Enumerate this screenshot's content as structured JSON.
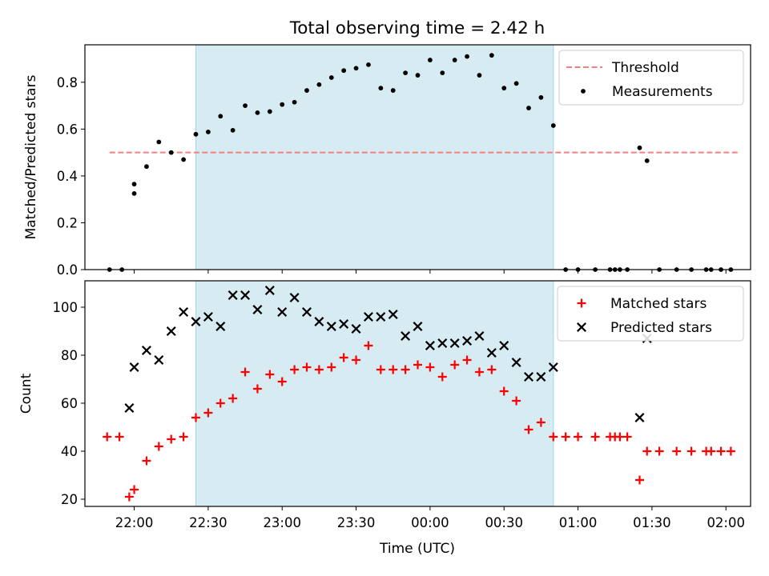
{
  "figure_title": "Total observing time = 2.42 h",
  "xlabel": "Time (UTC)",
  "x_ticks": [
    "22:00",
    "22:30",
    "23:00",
    "23:30",
    "00:00",
    "00:30",
    "01:00",
    "01:30",
    "02:00"
  ],
  "chart_data": [
    {
      "type": "scatter",
      "panel": "top",
      "ylabel": "Matched/Predicted stars",
      "ylim": [
        0,
        0.96
      ],
      "yticks": [
        0.0,
        0.2,
        0.4,
        0.6,
        0.8
      ],
      "ytick_labels": [
        "0.0",
        "0.2",
        "0.4",
        "0.6",
        "0.8"
      ],
      "x_range": [
        "21:40",
        "02:10"
      ],
      "shaded_interval": [
        "22:25",
        "00:50"
      ],
      "legend": [
        "Threshold",
        "Measurements"
      ],
      "legend_position": "top-right",
      "threshold": {
        "name": "Threshold",
        "value": 0.5,
        "x": [
          "21:50",
          "02:05"
        ],
        "color": "#f08080",
        "style": "dashed"
      },
      "series": [
        {
          "name": "Measurements",
          "color": "#000000",
          "marker": "dot",
          "x": [
            "21:50",
            "21:55",
            "22:00",
            "22:00",
            "22:05",
            "22:10",
            "22:15",
            "22:20",
            "22:25",
            "22:30",
            "22:35",
            "22:40",
            "22:45",
            "22:50",
            "22:55",
            "23:00",
            "23:05",
            "23:10",
            "23:15",
            "23:20",
            "23:25",
            "23:30",
            "23:35",
            "23:40",
            "23:45",
            "23:50",
            "23:55",
            "00:00",
            "00:05",
            "00:10",
            "00:15",
            "00:20",
            "00:25",
            "00:30",
            "00:35",
            "00:40",
            "00:45",
            "00:50",
            "00:55",
            "01:00",
            "01:07",
            "01:13",
            "01:15",
            "01:17",
            "01:20",
            "01:25",
            "01:28",
            "01:33",
            "01:40",
            "01:46",
            "01:52",
            "01:54",
            "01:58",
            "02:02"
          ],
          "y": [
            0.0,
            0.0,
            0.365,
            0.325,
            0.44,
            0.545,
            0.5,
            0.47,
            0.578,
            0.588,
            0.655,
            0.595,
            0.7,
            0.67,
            0.675,
            0.705,
            0.715,
            0.765,
            0.79,
            0.82,
            0.85,
            0.86,
            0.875,
            0.775,
            0.765,
            0.84,
            0.83,
            0.895,
            0.84,
            0.895,
            0.91,
            0.83,
            0.915,
            0.775,
            0.795,
            0.69,
            0.735,
            0.615,
            0.0,
            0.0,
            0.0,
            0.0,
            0.0,
            0.0,
            0.0,
            0.52,
            0.465,
            0.0,
            0.0,
            0.0,
            0.0,
            0.0,
            0.0,
            0.0
          ]
        }
      ]
    },
    {
      "type": "scatter",
      "panel": "bottom",
      "ylabel": "Count",
      "ylim": [
        17,
        111
      ],
      "yticks": [
        20,
        40,
        60,
        80,
        100
      ],
      "ytick_labels": [
        "20",
        "40",
        "60",
        "80",
        "100"
      ],
      "x_range": [
        "21:40",
        "02:10"
      ],
      "shaded_interval": [
        "22:25",
        "00:50"
      ],
      "legend": [
        "Matched stars",
        "Predicted stars"
      ],
      "legend_position": "top-right",
      "series": [
        {
          "name": "Matched stars",
          "color": "#ff0000",
          "marker": "plus",
          "x": [
            "21:49",
            "21:54",
            "21:58",
            "22:00",
            "22:05",
            "22:10",
            "22:15",
            "22:20",
            "22:25",
            "22:30",
            "22:35",
            "22:40",
            "22:45",
            "22:50",
            "22:55",
            "23:00",
            "23:05",
            "23:10",
            "23:15",
            "23:20",
            "23:25",
            "23:30",
            "23:35",
            "23:40",
            "23:45",
            "23:50",
            "23:55",
            "00:00",
            "00:05",
            "00:10",
            "00:15",
            "00:20",
            "00:25",
            "00:30",
            "00:35",
            "00:40",
            "00:45",
            "00:50",
            "00:55",
            "01:00",
            "01:07",
            "01:13",
            "01:15",
            "01:17",
            "01:20",
            "01:25",
            "01:28",
            "01:33",
            "01:40",
            "01:46",
            "01:52",
            "01:54",
            "01:58",
            "02:02"
          ],
          "y": [
            46,
            46,
            21,
            24,
            36,
            42,
            45,
            46,
            54,
            56,
            60,
            62,
            73,
            66,
            72,
            69,
            74,
            75,
            74,
            75,
            79,
            78,
            84,
            74,
            74,
            74,
            76,
            75,
            71,
            76,
            78,
            73,
            74,
            65,
            61,
            49,
            52,
            46,
            46,
            46,
            46,
            46,
            46,
            46,
            46,
            28,
            40,
            40,
            40,
            40,
            40,
            40,
            40,
            40
          ]
        },
        {
          "name": "Predicted stars",
          "color": "#000000",
          "marker": "x",
          "x": [
            "21:58",
            "22:00",
            "22:05",
            "22:10",
            "22:15",
            "22:20",
            "22:25",
            "22:30",
            "22:35",
            "22:40",
            "22:45",
            "22:50",
            "22:55",
            "23:00",
            "23:05",
            "23:10",
            "23:15",
            "23:20",
            "23:25",
            "23:30",
            "23:35",
            "23:40",
            "23:45",
            "23:50",
            "23:55",
            "00:00",
            "00:05",
            "00:10",
            "00:15",
            "00:20",
            "00:25",
            "00:30",
            "00:35",
            "00:40",
            "00:45",
            "00:50",
            "01:25",
            "01:28"
          ],
          "y": [
            58,
            75,
            82,
            78,
            90,
            98,
            94,
            96,
            92,
            105,
            105,
            99,
            107,
            98,
            104,
            98,
            94,
            92,
            93,
            91,
            96,
            96,
            97,
            88,
            92,
            84,
            85,
            85,
            86,
            88,
            81,
            84,
            77,
            71,
            71,
            75,
            54,
            87
          ]
        }
      ]
    }
  ]
}
